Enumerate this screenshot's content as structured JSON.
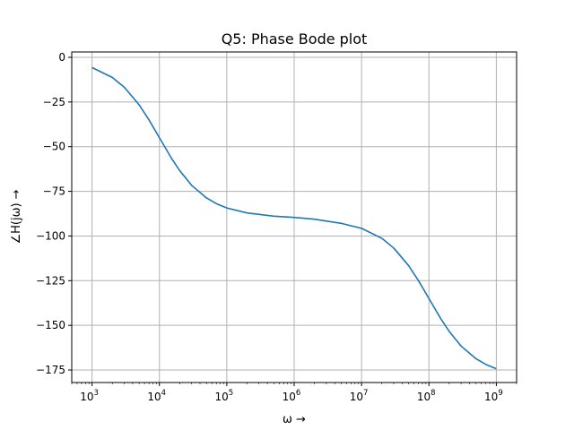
{
  "chart_data": {
    "type": "line",
    "title": "Q5: Phase Bode plot",
    "xlabel": "ω  →",
    "ylabel": "∠H(jω) →",
    "x_scale": "log",
    "xlim": [
      500,
      2000000000
    ],
    "ylim": [
      -182,
      3
    ],
    "x_ticks": [
      {
        "value": 1000,
        "base": "10",
        "exp": "3"
      },
      {
        "value": 10000,
        "base": "10",
        "exp": "4"
      },
      {
        "value": 100000,
        "base": "10",
        "exp": "5"
      },
      {
        "value": 1000000,
        "base": "10",
        "exp": "6"
      },
      {
        "value": 10000000,
        "base": "10",
        "exp": "7"
      },
      {
        "value": 100000000,
        "base": "10",
        "exp": "8"
      },
      {
        "value": 1000000000,
        "base": "10",
        "exp": "9"
      }
    ],
    "y_ticks": [
      {
        "value": 0,
        "label": "0"
      },
      {
        "value": -25,
        "label": "−25"
      },
      {
        "value": -50,
        "label": "−50"
      },
      {
        "value": -75,
        "label": "−75"
      },
      {
        "value": -100,
        "label": "−100"
      },
      {
        "value": -125,
        "label": "−125"
      },
      {
        "value": -150,
        "label": "−150"
      },
      {
        "value": -175,
        "label": "−175"
      }
    ],
    "grid": true,
    "series": [
      {
        "color": "#1f77b4",
        "x": [
          1000,
          2000,
          3000,
          5000,
          7000,
          10000,
          15000,
          20000,
          30000,
          50000,
          70000,
          100000,
          200000,
          500000,
          1000000,
          2000000,
          5000000,
          10000000,
          20000000,
          30000000,
          50000000,
          70000000,
          100000000,
          150000000,
          200000000,
          300000000,
          500000000,
          700000000,
          1000000000
        ],
        "y": [
          -5.7,
          -11.3,
          -16.7,
          -26.6,
          -35.0,
          -45.0,
          -56.3,
          -63.4,
          -71.6,
          -78.7,
          -81.9,
          -84.3,
          -87.1,
          -88.9,
          -89.6,
          -90.6,
          -92.9,
          -95.7,
          -101.3,
          -106.7,
          -116.6,
          -125.0,
          -135.0,
          -146.3,
          -153.4,
          -161.6,
          -168.7,
          -171.9,
          -174.3
        ]
      }
    ]
  }
}
